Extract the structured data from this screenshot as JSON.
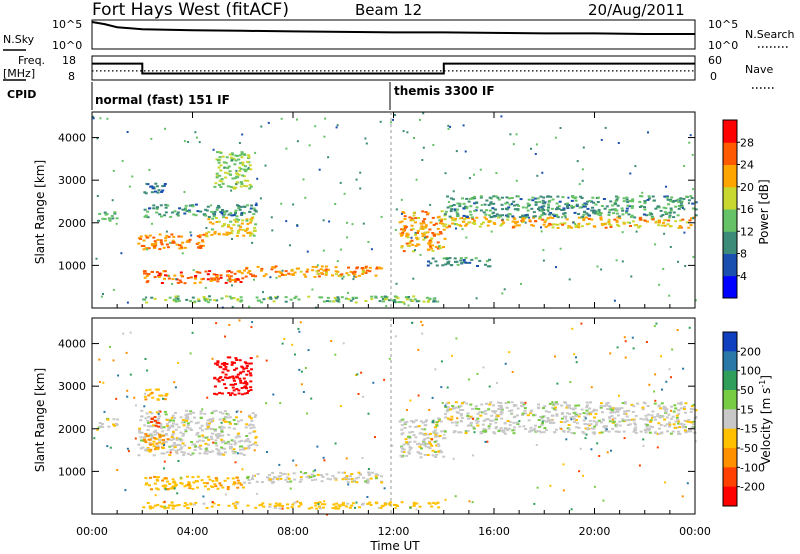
{
  "header": {
    "station": "Fort Hays West (fitACF)",
    "beam": "Beam 12",
    "date": "20/Aug/2011"
  },
  "top_panels": {
    "nsky_label": "N.Sky",
    "nsky_ticks": [
      "10^5",
      "10^0"
    ],
    "nsearch_label": "N.Search",
    "nsearch_ticks": [
      "10^5",
      "10^0"
    ],
    "freq_label": "Freq.",
    "freq_unit": "[MHz]",
    "freq_ticks": [
      "18",
      "8"
    ],
    "nave_label": "Nave",
    "nave_ticks": [
      "60",
      "0"
    ],
    "cpid_label": "CPID",
    "cpid_segments": [
      {
        "label": "normal (fast) 151 IF",
        "start_hr": 0,
        "end_hr": 12
      },
      {
        "label": "themis 3300 IF",
        "start_hr": 12,
        "end_hr": 24
      }
    ]
  },
  "chart_data": [
    {
      "type": "line",
      "title": "N.Sky / N.Search",
      "xlim": [
        0,
        24
      ],
      "series": [
        {
          "name": "N.Sky",
          "x": [
            0,
            0.5,
            1,
            2,
            4,
            6,
            8,
            10,
            12,
            14,
            16,
            18,
            20,
            22,
            24
          ],
          "y": [
            5,
            4.6,
            4.0,
            3.6,
            3.4,
            3.3,
            3.2,
            3.1,
            3.0,
            3.0,
            2.9,
            2.8,
            2.8,
            2.7,
            2.7
          ]
        }
      ]
    },
    {
      "type": "line",
      "title": "Freq / Nave",
      "xlim": [
        0,
        24
      ],
      "ylim_freq": [
        8,
        18
      ],
      "ylim_nave": [
        0,
        60
      ],
      "series": [
        {
          "name": "Freq.",
          "x": [
            0,
            2,
            2,
            14,
            14,
            24
          ],
          "y": [
            15.0,
            15.0,
            10.5,
            10.5,
            15.0,
            15.0
          ]
        },
        {
          "name": "Nave",
          "x": [
            0,
            24
          ],
          "y": [
            22,
            22
          ]
        }
      ]
    },
    {
      "type": "heatmap",
      "parameter": "Power",
      "ylabel": "Slant Range [km]",
      "colorbar_label": "Power [dB]",
      "colorbar_ticks": [
        "4",
        "8",
        "12",
        "16",
        "20",
        "24",
        "28"
      ],
      "colorbar_colors": [
        "#0000ff",
        "#1a4fb0",
        "#3c8a78",
        "#66c266",
        "#c8d830",
        "#ffa500",
        "#ff5a00",
        "#ff0000"
      ],
      "yticks": [
        "1000",
        "2000",
        "3000",
        "4000"
      ],
      "ylim": [
        0,
        4600
      ],
      "xlim": [
        0,
        24
      ],
      "echo_bands": [
        {
          "t0": 0.2,
          "t1": 1.0,
          "r0": 2050,
          "r1": 2300,
          "v": 10
        },
        {
          "t0": 1.8,
          "t1": 4.5,
          "r0": 1400,
          "r1": 1750,
          "v": 22
        },
        {
          "t0": 4.5,
          "t1": 6.5,
          "r0": 1700,
          "r1": 2150,
          "v": 17
        },
        {
          "t0": 2.0,
          "t1": 6.5,
          "r0": 2150,
          "r1": 2450,
          "v": 9
        },
        {
          "t0": 2.0,
          "t1": 6.0,
          "r0": 600,
          "r1": 900,
          "v": 24
        },
        {
          "t0": 6.0,
          "t1": 11.5,
          "r0": 750,
          "r1": 1000,
          "v": 21
        },
        {
          "t0": 2.0,
          "t1": 13.8,
          "r0": 150,
          "r1": 300,
          "v": 12
        },
        {
          "t0": 2.0,
          "t1": 3.0,
          "r0": 2700,
          "r1": 2950,
          "v": 6
        },
        {
          "t0": 4.8,
          "t1": 6.3,
          "r0": 2800,
          "r1": 3700,
          "v": 14
        },
        {
          "t0": 12.2,
          "t1": 14.0,
          "r0": 1350,
          "r1": 2300,
          "v": 20
        },
        {
          "t0": 14.0,
          "t1": 24.0,
          "r0": 1900,
          "r1": 2150,
          "v": 19
        },
        {
          "t0": 14.0,
          "t1": 24.0,
          "r0": 2150,
          "r1": 2650,
          "v": 9
        },
        {
          "t0": 13.2,
          "t1": 15.8,
          "r0": 1000,
          "r1": 1200,
          "v": 8
        }
      ]
    },
    {
      "type": "heatmap",
      "parameter": "Velocity",
      "ylabel": "Slant Range [km]",
      "xlabel": "Time UT",
      "colorbar_label": "Velocity [m s^-1]",
      "colorbar_ticks": [
        "200",
        "100",
        "50",
        "15",
        "-15",
        "-50",
        "-100",
        "-200"
      ],
      "colorbar_colors": [
        "#1040c0",
        "#2a78a8",
        "#2e9e5a",
        "#78cc44",
        "#c8c8c8",
        "#ffc000",
        "#ff9000",
        "#ff4000",
        "#ff0000"
      ],
      "yticks": [
        "1000",
        "2000",
        "3000",
        "4000"
      ],
      "xticks": [
        "00:00",
        "04:00",
        "08:00",
        "12:00",
        "16:00",
        "20:00",
        "00:00"
      ],
      "ylim": [
        0,
        4600
      ],
      "xlim": [
        0,
        24
      ],
      "echo_bands": [
        {
          "t0": 0.2,
          "t1": 1.0,
          "r0": 2050,
          "r1": 2300,
          "v": 0
        },
        {
          "t0": 1.8,
          "t1": 6.5,
          "r0": 1400,
          "r1": 2450,
          "v": 0
        },
        {
          "t0": 2.0,
          "t1": 3.0,
          "r0": 1500,
          "r1": 1900,
          "v": -60
        },
        {
          "t0": 2.3,
          "t1": 2.8,
          "r0": 2050,
          "r1": 2300,
          "v": -120
        },
        {
          "t0": 2.0,
          "t1": 6.0,
          "r0": 600,
          "r1": 900,
          "v": -40
        },
        {
          "t0": 6.0,
          "t1": 11.5,
          "r0": 750,
          "r1": 1000,
          "v": 0
        },
        {
          "t0": 2.0,
          "t1": 13.8,
          "r0": 150,
          "r1": 300,
          "v": -30
        },
        {
          "t0": 4.8,
          "t1": 6.3,
          "r0": 2800,
          "r1": 3700,
          "v": -220
        },
        {
          "t0": 2.0,
          "t1": 3.0,
          "r0": 2700,
          "r1": 2950,
          "v": -40
        },
        {
          "t0": 12.2,
          "t1": 14.0,
          "r0": 1350,
          "r1": 2300,
          "v": 0
        },
        {
          "t0": 14.0,
          "t1": 24.0,
          "r0": 1900,
          "r1": 2650,
          "v": 0
        }
      ]
    }
  ]
}
